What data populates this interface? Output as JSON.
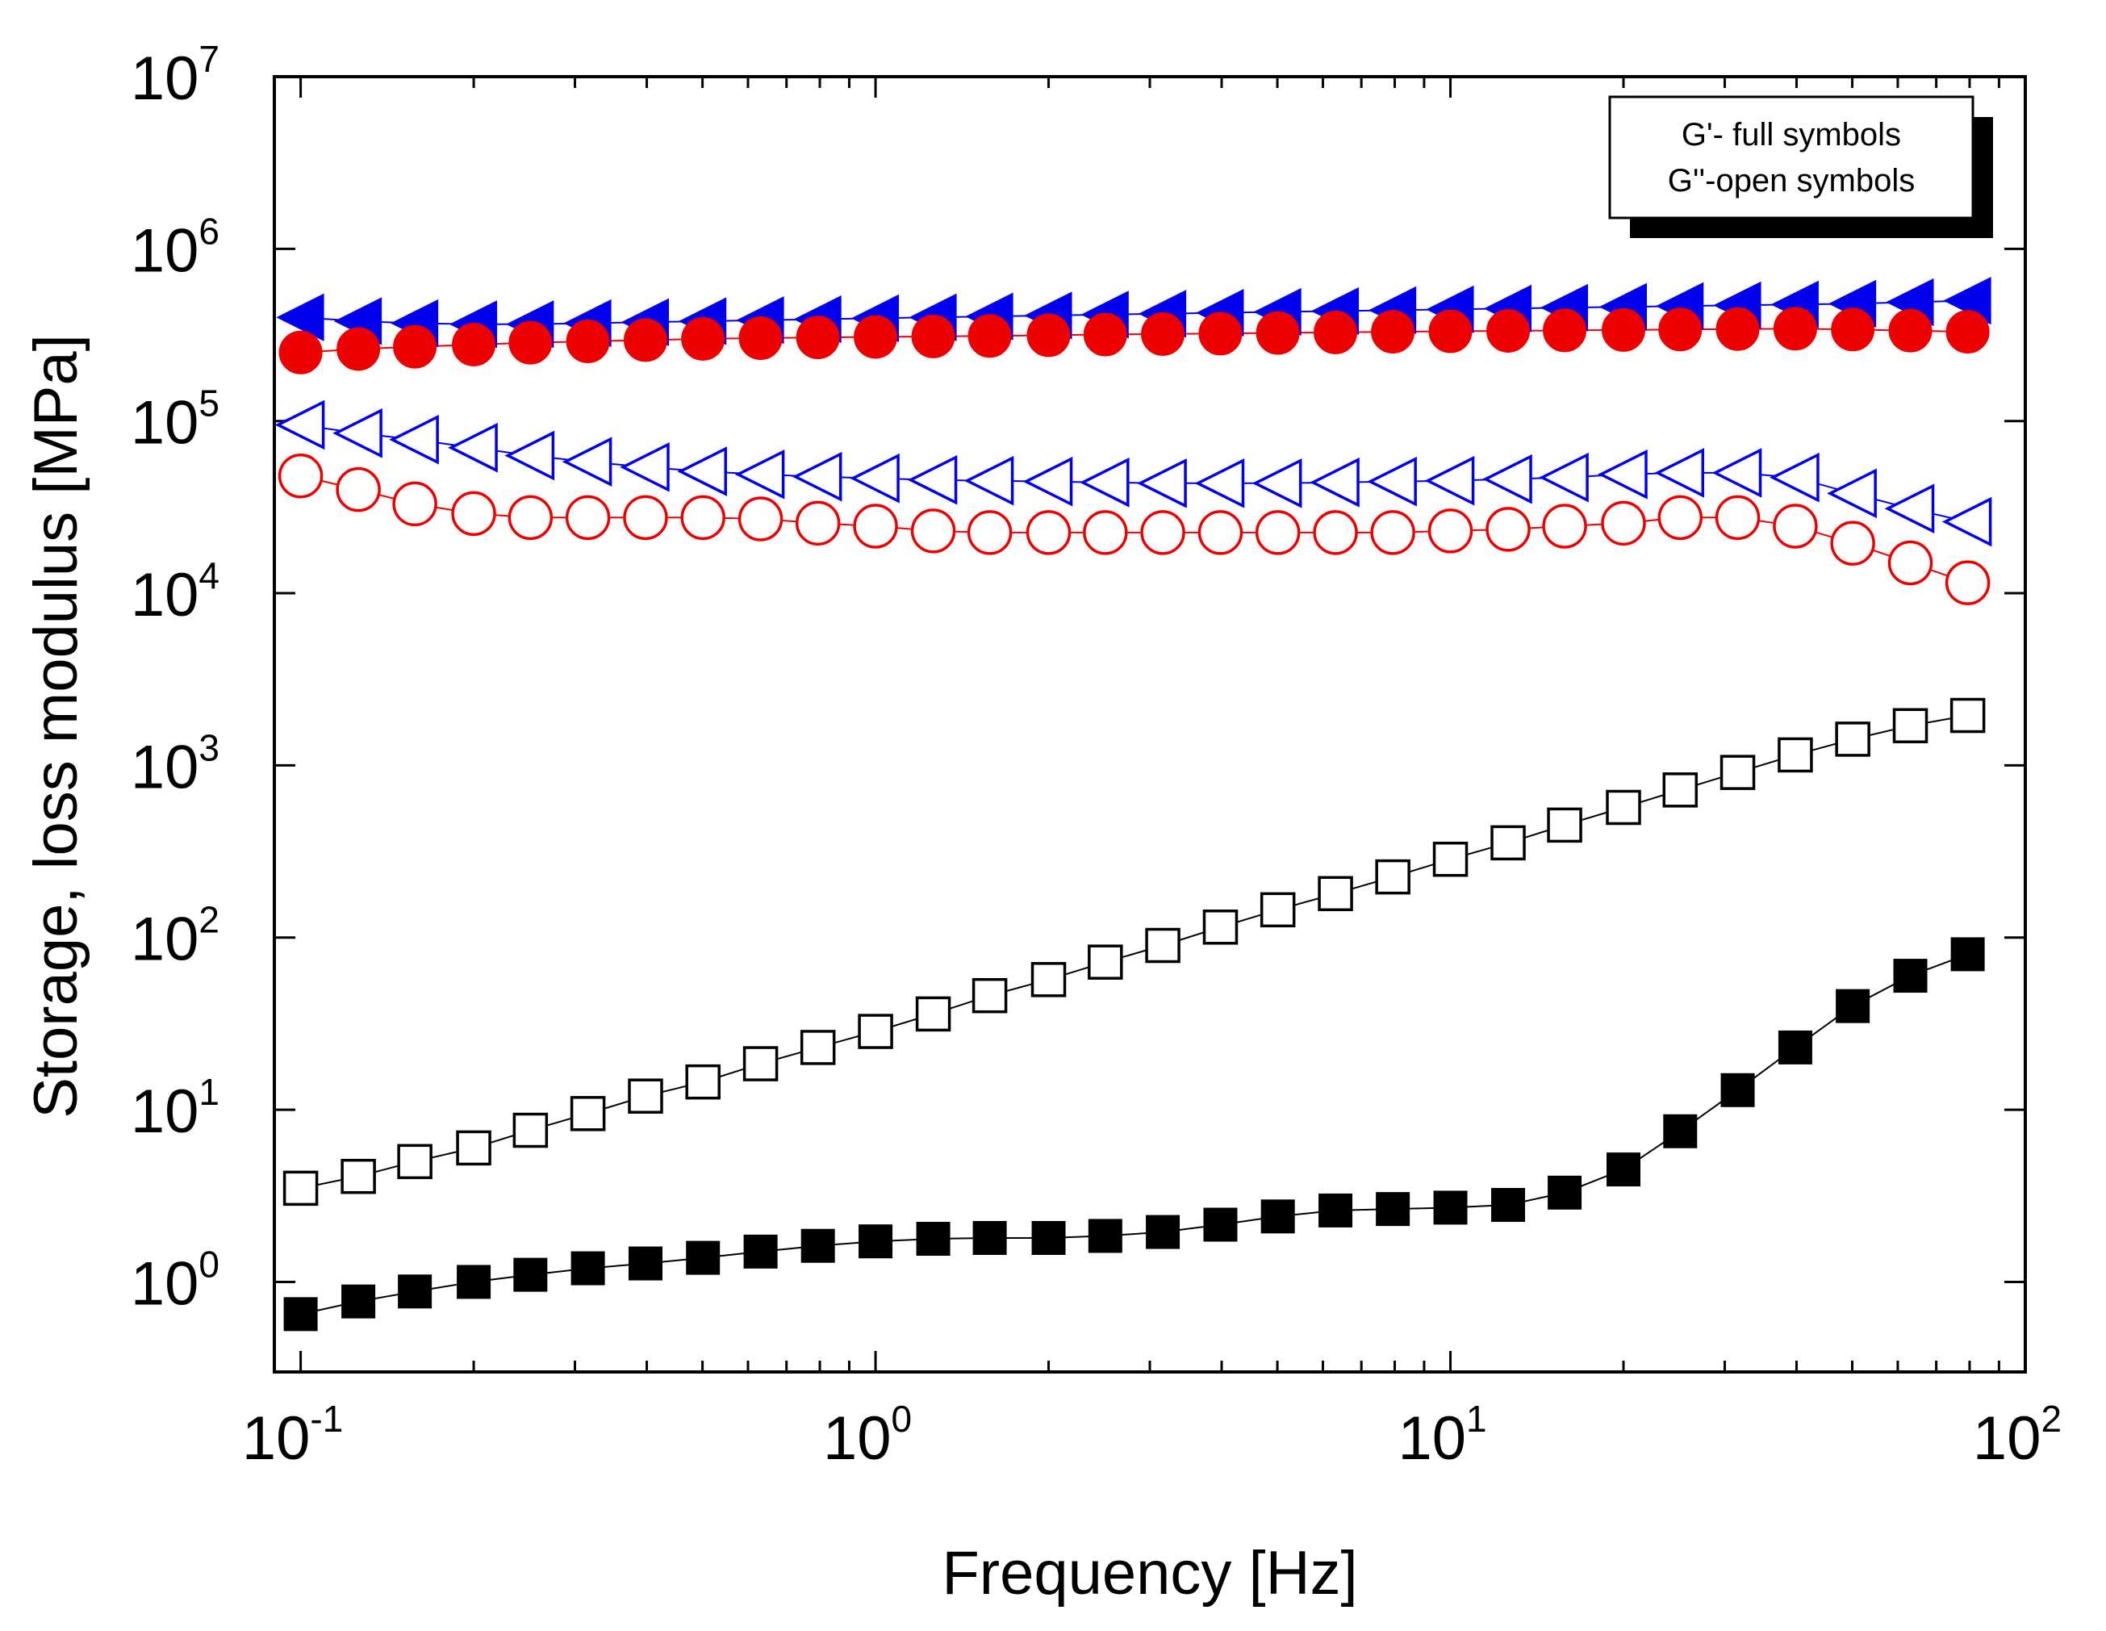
{
  "chart_data": {
    "type": "scatter",
    "xscale": "log",
    "yscale": "log",
    "xlim": [
      0.09,
      100
    ],
    "ylim": [
      0.3,
      10000000
    ],
    "xlabel": "Frequency [Hz]",
    "ylabel": "Storage, loss modulus [MPa]",
    "x_ticks": [
      {
        "base": "10",
        "exp": "-1"
      },
      {
        "base": "10",
        "exp": "0"
      },
      {
        "base": "10",
        "exp": "1"
      },
      {
        "base": "10",
        "exp": "2"
      }
    ],
    "y_ticks": [
      {
        "base": "10",
        "exp": "0"
      },
      {
        "base": "10",
        "exp": "1"
      },
      {
        "base": "10",
        "exp": "2"
      },
      {
        "base": "10",
        "exp": "3"
      },
      {
        "base": "10",
        "exp": "4"
      },
      {
        "base": "10",
        "exp": "5"
      },
      {
        "base": "10",
        "exp": "6"
      },
      {
        "base": "10",
        "exp": "7"
      }
    ],
    "legend": {
      "lines": [
        "G'- full symbols",
        "G''-open symbols"
      ],
      "placement": "top-right"
    },
    "x": [
      0.1,
      0.126,
      0.158,
      0.2,
      0.251,
      0.316,
      0.398,
      0.501,
      0.631,
      0.794,
      1.0,
      1.26,
      1.58,
      2.0,
      2.51,
      3.16,
      3.98,
      5.01,
      6.31,
      7.94,
      10.0,
      12.6,
      15.8,
      20.0,
      25.1,
      31.6,
      39.8,
      50.1,
      63.1,
      79.4
    ],
    "series": [
      {
        "name": "G' blue (filled triangles)",
        "marker": "triangle-left",
        "filled": true,
        "color": "#0000ee",
        "values": [
          400000,
          380000,
          370000,
          365000,
          365000,
          370000,
          375000,
          380000,
          385000,
          390000,
          395000,
          400000,
          405000,
          410000,
          415000,
          420000,
          425000,
          430000,
          435000,
          440000,
          445000,
          450000,
          455000,
          460000,
          465000,
          470000,
          475000,
          480000,
          490000,
          500000
        ]
      },
      {
        "name": "G' red (filled circles)",
        "marker": "circle",
        "filled": true,
        "color": "#ee0000",
        "values": [
          250000,
          262000,
          270000,
          278000,
          285000,
          290000,
          295000,
          300000,
          303000,
          306000,
          308000,
          310000,
          312000,
          315000,
          318000,
          320000,
          322000,
          325000,
          327000,
          330000,
          332000,
          334000,
          336000,
          338000,
          340000,
          342000,
          344000,
          340000,
          335000,
          330000
        ]
      },
      {
        "name": "G'' blue (open triangles)",
        "marker": "triangle-left",
        "filled": false,
        "color": "#0000ee",
        "values": [
          95000,
          85000,
          78000,
          70000,
          63000,
          58000,
          54000,
          51000,
          49000,
          47500,
          46500,
          45500,
          45000,
          44500,
          44000,
          43500,
          43500,
          43500,
          44000,
          44500,
          45000,
          46000,
          47000,
          49000,
          50000,
          50000,
          47000,
          38000,
          31000,
          26000
        ]
      },
      {
        "name": "G'' red (open circles)",
        "marker": "circle",
        "filled": false,
        "color": "#ee0000",
        "values": [
          48000,
          40000,
          33000,
          29000,
          27500,
          27500,
          27500,
          27500,
          27000,
          25500,
          24500,
          23000,
          22500,
          22500,
          22500,
          22500,
          22500,
          22500,
          22500,
          22500,
          23000,
          23500,
          24500,
          25500,
          27500,
          27500,
          24500,
          19500,
          15000,
          11500
        ]
      },
      {
        "name": "G'' black (open squares)",
        "marker": "square",
        "filled": false,
        "color": "#000000",
        "values": [
          3.5,
          4.1,
          5.0,
          6.0,
          7.6,
          9.5,
          12,
          14.5,
          18.5,
          23,
          28.5,
          36,
          46,
          57,
          72,
          90,
          115,
          145,
          180,
          225,
          285,
          355,
          450,
          570,
          720,
          910,
          1150,
          1420,
          1700,
          1950
        ]
      },
      {
        "name": "G' black (filled squares)",
        "marker": "square",
        "filled": true,
        "color": "#000000",
        "values": [
          0.65,
          0.77,
          0.88,
          1.0,
          1.1,
          1.2,
          1.28,
          1.38,
          1.5,
          1.62,
          1.72,
          1.78,
          1.8,
          1.8,
          1.85,
          1.95,
          2.15,
          2.4,
          2.6,
          2.65,
          2.7,
          2.8,
          3.3,
          4.5,
          7.5,
          13,
          23,
          40,
          60,
          80
        ]
      }
    ]
  }
}
